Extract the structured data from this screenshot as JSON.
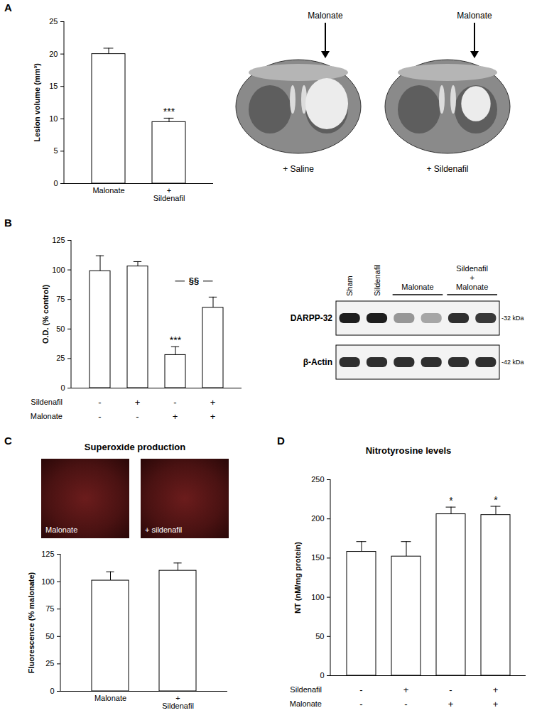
{
  "chart_data": [
    {
      "panel": "A",
      "type": "bar",
      "ylabel": "Lesion volume (mm³)",
      "categories": [
        "Malonate",
        "+\nSildenafil"
      ],
      "values": [
        20.0,
        9.5
      ],
      "errors": [
        0.9,
        0.6
      ],
      "color": "#ffffff",
      "ylim": [
        0,
        25
      ],
      "yticks": [
        0,
        5,
        10,
        15,
        20,
        25
      ],
      "annotations": [
        {
          "index": 1,
          "text": "***"
        }
      ],
      "images": [
        {
          "arrow": "Malonate",
          "label": "+ Saline"
        },
        {
          "arrow": "Malonate",
          "label": "+ Sildenafil"
        }
      ]
    },
    {
      "panel": "B",
      "type": "bar",
      "ylabel": "O.D. (% control)",
      "categories": [
        null,
        null,
        null,
        null
      ],
      "conditions": [
        {
          "name": "Sildenafil",
          "marks": [
            "-",
            "+",
            "-",
            "+"
          ]
        },
        {
          "name": "Malonate",
          "marks": [
            "-",
            "-",
            "+",
            "+"
          ]
        }
      ],
      "values": [
        99,
        103,
        28,
        68
      ],
      "errors": [
        13,
        4,
        7,
        9
      ],
      "color": "#ffffff",
      "ylim": [
        0,
        125
      ],
      "yticks": [
        0,
        25,
        50,
        75,
        100,
        125
      ],
      "annotations": [
        {
          "index": 2,
          "text": "***"
        },
        {
          "from": 2,
          "to": 3,
          "text": "§§"
        }
      ],
      "blot": {
        "groups": [
          {
            "label": "Sham",
            "span": 1
          },
          {
            "label": "Sildenafil",
            "span": 1
          },
          {
            "label": "Malonate",
            "span": 2
          },
          {
            "label": "Sildenafil\n+\nMalonate",
            "span": 2
          }
        ],
        "rows": [
          {
            "label": "DARPP-32",
            "size": "-32 kDa",
            "intensity": [
              0.9,
              0.9,
              0.5,
              0.45,
              0.85,
              0.82
            ]
          },
          {
            "label": "β-Actin",
            "size": "-42 kDa",
            "intensity": [
              0.85,
              0.85,
              0.85,
              0.85,
              0.85,
              0.85
            ]
          }
        ]
      }
    },
    {
      "panel": "C",
      "type": "bar",
      "title": "Superoxide production",
      "ylabel": "Fluorescence (% malonate)",
      "categories": [
        "Malonate",
        "+\nSildenafil"
      ],
      "values": [
        101,
        110
      ],
      "errors": [
        8,
        7
      ],
      "color": "#ffffff",
      "ylim": [
        0,
        125
      ],
      "yticks": [
        0,
        25,
        50,
        75,
        100,
        125
      ],
      "images": [
        {
          "label": "Malonate"
        },
        {
          "label": "+ sildenafil"
        }
      ]
    },
    {
      "panel": "D",
      "type": "bar",
      "title": "Nitrotyrosine levels",
      "ylabel": "NT (nM/mg protein)",
      "categories": [
        null,
        null,
        null,
        null
      ],
      "conditions": [
        {
          "name": "Sildenafil",
          "marks": [
            "-",
            "+",
            "-",
            "+"
          ]
        },
        {
          "name": "Malonate",
          "marks": [
            "-",
            "-",
            "+",
            "+"
          ]
        }
      ],
      "values": [
        158,
        152,
        206,
        205
      ],
      "errors": [
        13,
        19,
        9,
        11
      ],
      "color": "#ffffff",
      "ylim": [
        0,
        250
      ],
      "yticks": [
        0,
        50,
        100,
        150,
        200,
        250
      ],
      "annotations": [
        {
          "index": 2,
          "text": "*"
        },
        {
          "index": 3,
          "text": "*"
        }
      ]
    }
  ]
}
